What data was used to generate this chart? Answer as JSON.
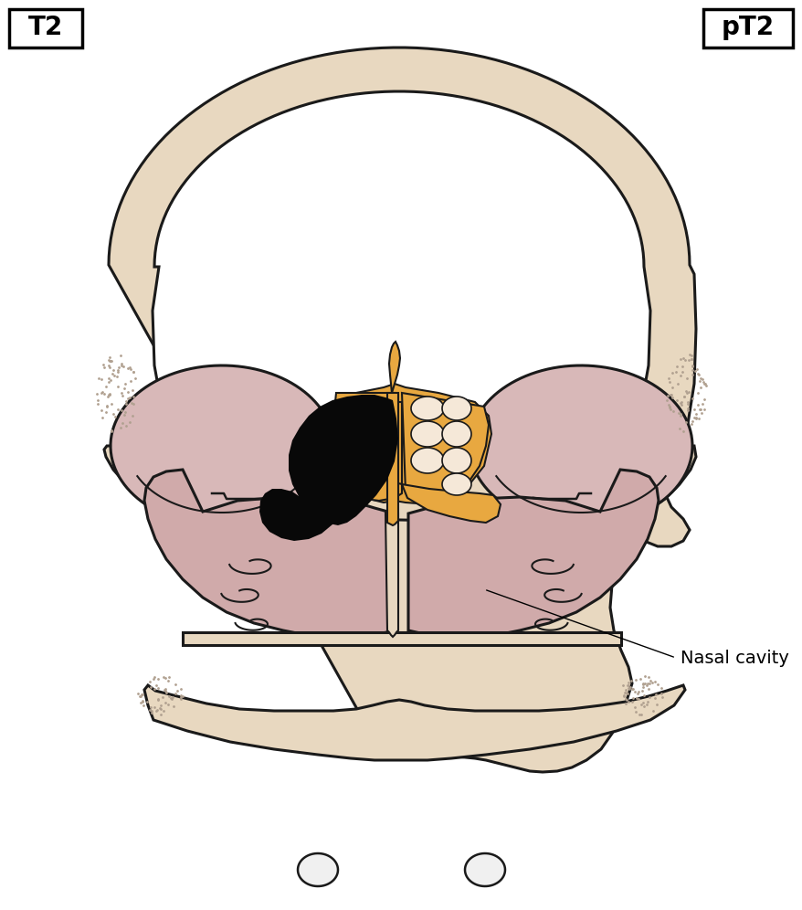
{
  "title_left": "T2",
  "title_right": "pT2",
  "label_text": "Nasal cavity",
  "bg_color": "#ffffff",
  "bone_fill": "#e8d8c0",
  "bone_stroke": "#1a1a1a",
  "orbit_fill": "#d8b8b8",
  "sinus_fill": "#d0aaaa",
  "ethmoid_fill": "#e8a840",
  "tumor_fill": "#080808",
  "stipple_color": "#b0a090",
  "fig_width": 8.79,
  "fig_height": 9.96,
  "dpi": 100
}
